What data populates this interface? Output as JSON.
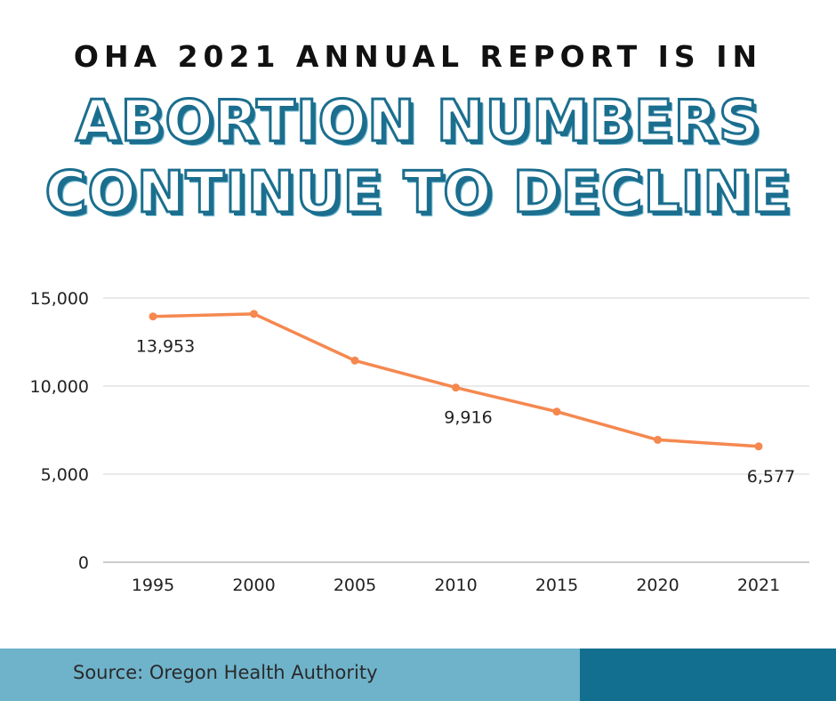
{
  "header": {
    "kicker": "OHA 2021 ANNUAL REPORT IS IN",
    "headline_line1": "ABORTION NUMBERS",
    "headline_line2": "CONTINUE TO DECLINE"
  },
  "footer": {
    "source": "Source: Oregon Health Authority"
  },
  "colors": {
    "line": "#f5884f",
    "headline_outline": "#1b6e8e",
    "footer_light": "#6fb3cb",
    "footer_dark": "#136f90"
  },
  "chart_data": {
    "type": "line",
    "title": "",
    "xlabel": "",
    "ylabel": "",
    "categories": [
      "1995",
      "2000",
      "2005",
      "2010",
      "2015",
      "2020",
      "2021"
    ],
    "series": [
      {
        "values": [
          13953,
          14100,
          11450,
          9916,
          8550,
          6950,
          6577
        ]
      }
    ],
    "data_labels": [
      {
        "index": 0,
        "text": "13,953"
      },
      {
        "index": 3,
        "text": "9,916"
      },
      {
        "index": 6,
        "text": "6,577"
      }
    ],
    "ylim": [
      0,
      15000
    ],
    "yticks": [
      0,
      5000,
      10000,
      15000
    ],
    "ytick_labels": [
      "0",
      "5,000",
      "10,000",
      "15,000"
    ],
    "grid": true
  }
}
